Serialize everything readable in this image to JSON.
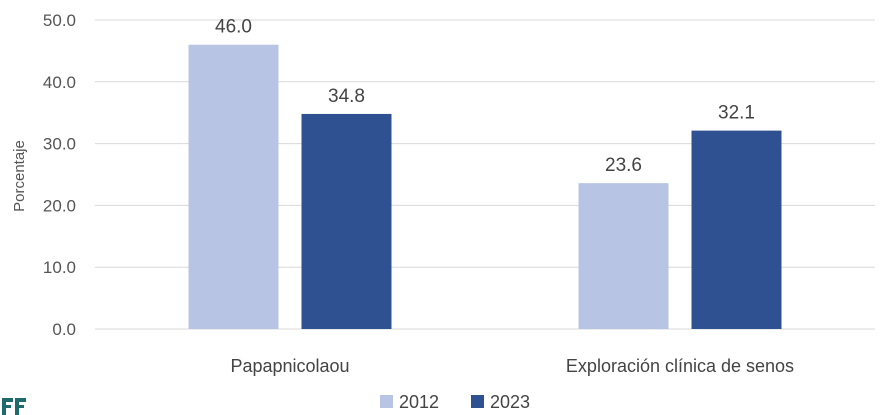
{
  "chart_data": {
    "type": "bar",
    "categories": [
      "Papapnicolaou",
      "Exploración clínica de senos"
    ],
    "series": [
      {
        "name": "2012",
        "values": [
          46.0,
          23.6
        ],
        "color": "#b8c4e3"
      },
      {
        "name": "2023",
        "values": [
          34.8,
          32.1
        ],
        "color": "#2f5191"
      }
    ],
    "xlabel": "",
    "ylabel": "Porcentaje",
    "ylim": [
      0,
      50
    ],
    "yticks": [
      "0.0",
      "10.0",
      "20.0",
      "30.0",
      "40.0",
      "50.0"
    ],
    "grid": true,
    "legend": "bottom",
    "data_labels": true
  },
  "colors": {
    "grid": "#d9d9d9",
    "logo": "#1f6a6a"
  }
}
